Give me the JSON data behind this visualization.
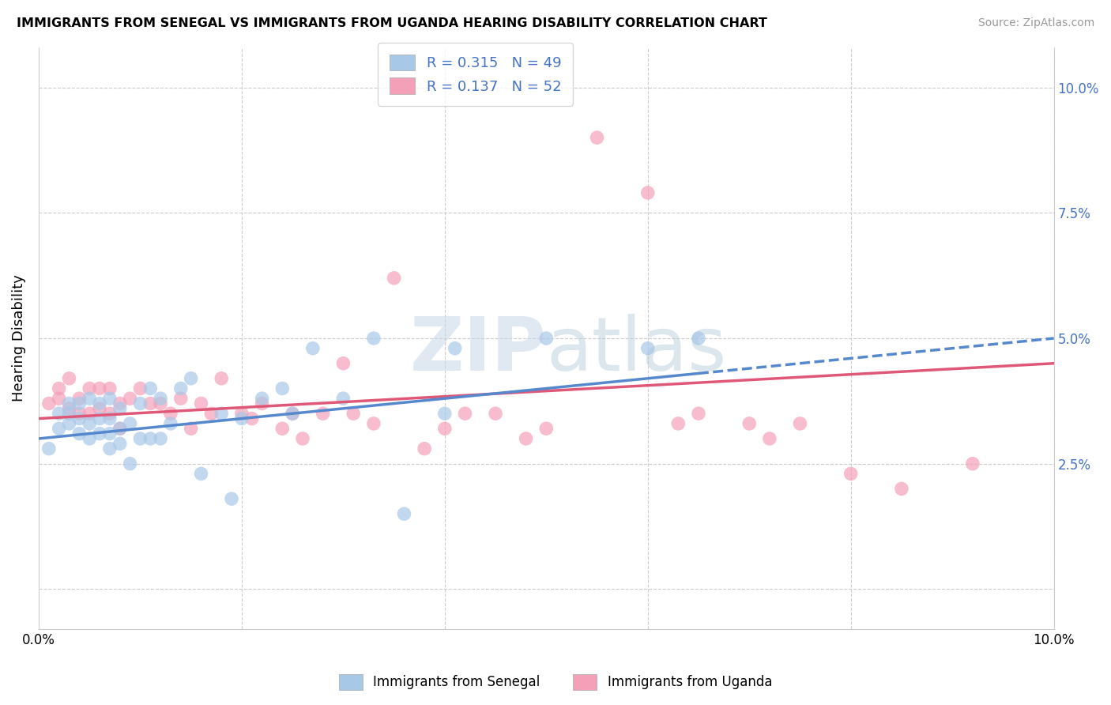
{
  "title": "IMMIGRANTS FROM SENEGAL VS IMMIGRANTS FROM UGANDA HEARING DISABILITY CORRELATION CHART",
  "source": "Source: ZipAtlas.com",
  "xlabel": "",
  "ylabel": "Hearing Disability",
  "xlim": [
    0.0,
    0.1
  ],
  "ylim": [
    -0.008,
    0.108
  ],
  "xticks": [
    0.0,
    0.02,
    0.04,
    0.06,
    0.08,
    0.1
  ],
  "xticklabels": [
    "0.0%",
    "",
    "",
    "",
    "",
    "10.0%"
  ],
  "yticks": [
    0.0,
    0.025,
    0.05,
    0.075,
    0.1
  ],
  "yticklabels": [
    "",
    "2.5%",
    "5.0%",
    "7.5%",
    "10.0%"
  ],
  "color_senegal": "#a8c8e8",
  "color_uganda": "#f4a0b8",
  "trendline_color_senegal": "#5588cc",
  "trendline_color_uganda": "#e05878",
  "senegal_x": [
    0.001,
    0.002,
    0.002,
    0.003,
    0.003,
    0.003,
    0.004,
    0.004,
    0.004,
    0.005,
    0.005,
    0.005,
    0.006,
    0.006,
    0.006,
    0.007,
    0.007,
    0.007,
    0.007,
    0.008,
    0.008,
    0.008,
    0.009,
    0.009,
    0.01,
    0.01,
    0.011,
    0.011,
    0.012,
    0.012,
    0.013,
    0.014,
    0.015,
    0.016,
    0.018,
    0.019,
    0.02,
    0.022,
    0.024,
    0.025,
    0.027,
    0.03,
    0.033,
    0.036,
    0.04,
    0.041,
    0.05,
    0.06,
    0.065
  ],
  "senegal_y": [
    0.028,
    0.032,
    0.035,
    0.033,
    0.035,
    0.037,
    0.031,
    0.034,
    0.037,
    0.03,
    0.033,
    0.038,
    0.031,
    0.034,
    0.037,
    0.028,
    0.031,
    0.034,
    0.038,
    0.029,
    0.032,
    0.036,
    0.025,
    0.033,
    0.03,
    0.037,
    0.03,
    0.04,
    0.03,
    0.038,
    0.033,
    0.04,
    0.042,
    0.023,
    0.035,
    0.018,
    0.034,
    0.038,
    0.04,
    0.035,
    0.048,
    0.038,
    0.05,
    0.015,
    0.035,
    0.048,
    0.05,
    0.048,
    0.05
  ],
  "uganda_x": [
    0.001,
    0.002,
    0.002,
    0.003,
    0.003,
    0.004,
    0.004,
    0.005,
    0.005,
    0.006,
    0.006,
    0.007,
    0.007,
    0.008,
    0.008,
    0.009,
    0.01,
    0.011,
    0.012,
    0.013,
    0.014,
    0.015,
    0.016,
    0.017,
    0.018,
    0.02,
    0.021,
    0.022,
    0.024,
    0.025,
    0.026,
    0.028,
    0.03,
    0.031,
    0.033,
    0.035,
    0.038,
    0.04,
    0.042,
    0.045,
    0.048,
    0.05,
    0.055,
    0.06,
    0.063,
    0.065,
    0.07,
    0.072,
    0.075,
    0.08,
    0.085,
    0.092
  ],
  "uganda_y": [
    0.037,
    0.038,
    0.04,
    0.036,
    0.042,
    0.035,
    0.038,
    0.035,
    0.04,
    0.036,
    0.04,
    0.035,
    0.04,
    0.032,
    0.037,
    0.038,
    0.04,
    0.037,
    0.037,
    0.035,
    0.038,
    0.032,
    0.037,
    0.035,
    0.042,
    0.035,
    0.034,
    0.037,
    0.032,
    0.035,
    0.03,
    0.035,
    0.045,
    0.035,
    0.033,
    0.062,
    0.028,
    0.032,
    0.035,
    0.035,
    0.03,
    0.032,
    0.09,
    0.079,
    0.033,
    0.035,
    0.033,
    0.03,
    0.033,
    0.023,
    0.02,
    0.025
  ],
  "trendline_senegal_x0": 0.0,
  "trendline_senegal_y0": 0.03,
  "trendline_senegal_x1": 0.065,
  "trendline_senegal_y1": 0.043,
  "trendline_senegal_dash_x0": 0.065,
  "trendline_senegal_dash_y0": 0.043,
  "trendline_senegal_dash_x1": 0.1,
  "trendline_senegal_dash_y1": 0.05,
  "trendline_uganda_x0": 0.0,
  "trendline_uganda_y0": 0.034,
  "trendline_uganda_x1": 0.1,
  "trendline_uganda_y1": 0.045
}
